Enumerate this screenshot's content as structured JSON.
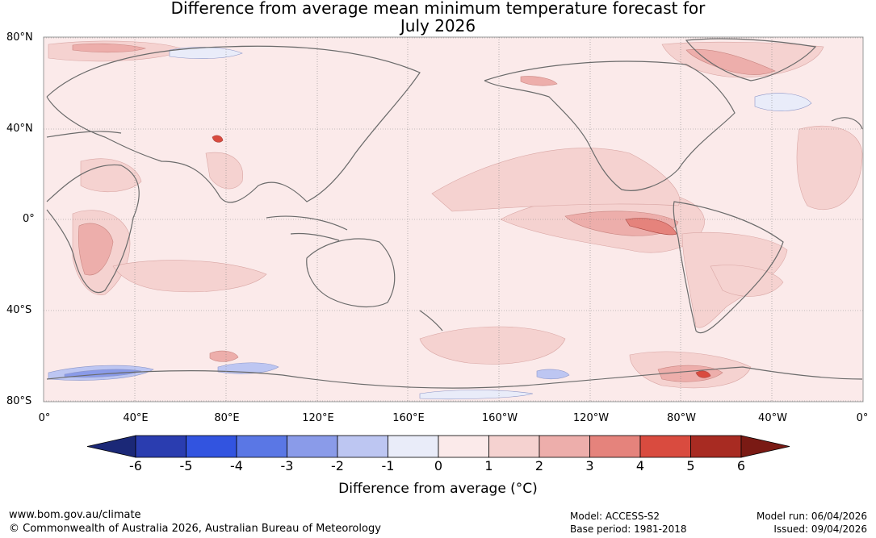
{
  "title_line1": "Difference from average mean minimum temperature forecast for",
  "title_line2": "July 2026",
  "lat_labels": [
    "80°N",
    "40°N",
    "0°",
    "40°S",
    "80°S"
  ],
  "lon_labels": [
    "0°",
    "40°E",
    "80°E",
    "120°E",
    "160°E",
    "160°W",
    "120°W",
    "80°W",
    "40°W",
    "0°"
  ],
  "colorbar": {
    "ticks": [
      "-6",
      "-5",
      "-4",
      "-3",
      "-2",
      "-1",
      "0",
      "1",
      "2",
      "3",
      "4",
      "5",
      "6"
    ],
    "label": "Difference from average (°C)",
    "colors": [
      "#1b2877",
      "#2a3db0",
      "#3254e0",
      "#5a77e5",
      "#8a9be9",
      "#bdc6f2",
      "#e9ecf9",
      "#fbeaea",
      "#f5d2d0",
      "#edaeab",
      "#e5837c",
      "#d94b3f",
      "#a82b22",
      "#7a1a14"
    ]
  },
  "colors": {
    "neutral": "#fbeaea",
    "land_outline": "#6b6b6b",
    "grid": "#888888"
  },
  "footer": {
    "url": "www.bom.gov.au/climate",
    "copyright": "© Commonwealth of Australia 2026, Australian Bureau of Meteorology",
    "model": "Model: ACCESS-S2",
    "base_period": "Base period: 1981-2018",
    "model_run": "Model run: 06/04/2026",
    "issued": "Issued: 09/04/2026"
  }
}
